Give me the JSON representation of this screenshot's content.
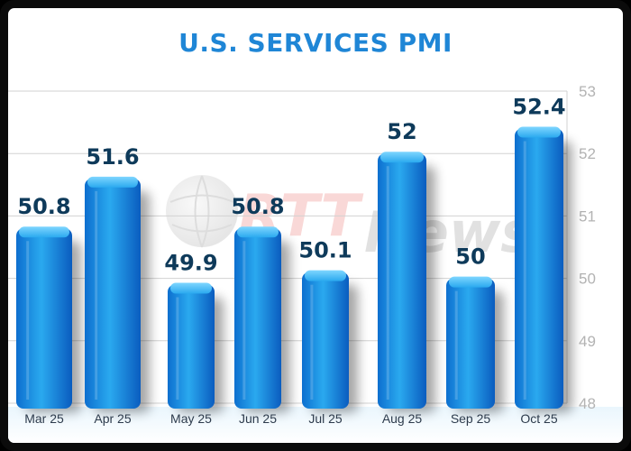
{
  "chart_data": {
    "type": "bar",
    "title": "U.S. SERVICES PMI",
    "categories": [
      "Mar 25",
      "Apr 25",
      "May 25",
      "Jun 25",
      "Jul 25",
      "Aug 25",
      "Sep 25",
      "Oct 25"
    ],
    "values": [
      50.8,
      51.6,
      49.9,
      50.8,
      50.1,
      52,
      50,
      52.4
    ],
    "value_labels": [
      "50.8",
      "51.6",
      "49.9",
      "50.8",
      "50.1",
      "52",
      "50",
      "52.4"
    ],
    "ylim": [
      48,
      53
    ],
    "yticks": [
      48,
      49,
      50,
      51,
      52,
      53
    ],
    "y_axis_position": "right",
    "grid": true,
    "xlabel": "",
    "ylabel": ""
  },
  "watermark": {
    "text": "RTTNews"
  },
  "colors": {
    "title": "#1f86d6",
    "bar_light": "#2db8f5",
    "bar_dark": "#0a5fc2",
    "value_label": "#0e3a5a",
    "grid": "#cfcfcf"
  }
}
